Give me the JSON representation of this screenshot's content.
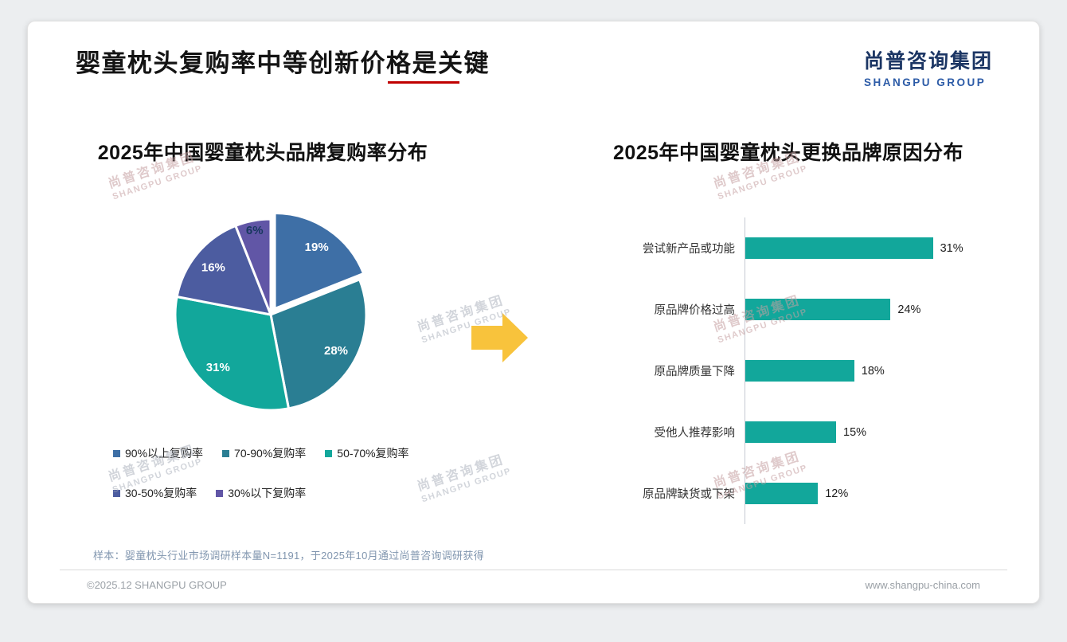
{
  "page": {
    "title": "婴童枕头复购率中等创新价格是关键",
    "logo": {
      "cn": "尚普咨询集团",
      "en": "SHANGPU GROUP"
    },
    "watermark": {
      "cn": "尚普咨询集团",
      "en": "SHANGPU GROUP"
    },
    "footer": {
      "sample_note": "样本：婴童枕头行业市场调研样本量N=1191，于2025年10月通过尚普咨询调研获得",
      "copyright": "©2025.12 SHANGPU GROUP",
      "website": "www.shangpu-china.com"
    },
    "accent_red": "#C00000"
  },
  "chart_data": [
    {
      "type": "pie",
      "title": "2025年中国婴童枕头品牌复购率分布",
      "labels": [
        "90%以上复购率",
        "70-90%复购率",
        "50-70%复购率",
        "30-50%复购率",
        "30%以下复购率"
      ],
      "values": [
        19,
        28,
        31,
        16,
        6
      ],
      "value_labels": [
        "19%",
        "28%",
        "31%",
        "16%",
        "6%"
      ],
      "colors": [
        "#3E6FA6",
        "#2A7E93",
        "#12A79B",
        "#4C5CA0",
        "#6156A6"
      ],
      "value_label_colors": [
        "#ffffff",
        "#ffffff",
        "#ffffff",
        "#ffffff",
        "#17375E"
      ],
      "start": "top",
      "direction": "clockwise",
      "exploded_slice": "19%",
      "legend_position": "bottom"
    },
    {
      "type": "bar",
      "orientation": "horizontal",
      "title": "2025年中国婴童枕头更换品牌原因分布",
      "categories": [
        "尝试新产品或功能",
        "原品牌价格过高",
        "原品牌质量下降",
        "受他人推荐影响",
        "原品牌缺货或下架"
      ],
      "values": [
        31,
        24,
        18,
        15,
        12
      ],
      "value_labels": [
        "31%",
        "24%",
        "18%",
        "15%",
        "12%"
      ],
      "bar_color": "#12A79B",
      "xlim": [
        0,
        35
      ],
      "value_label_position": "right",
      "grid": false
    }
  ]
}
